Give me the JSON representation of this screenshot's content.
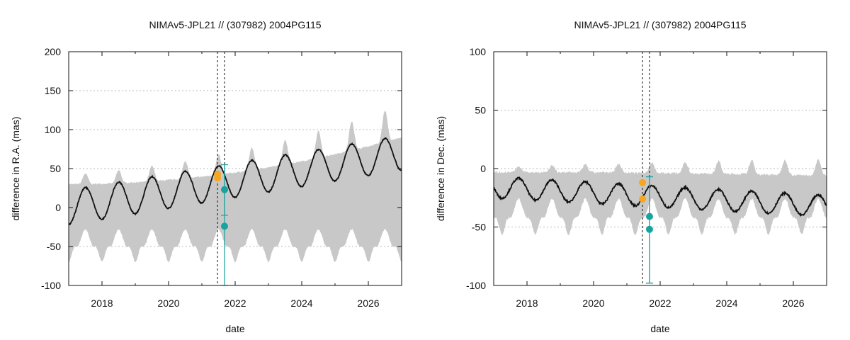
{
  "chart_data": [
    {
      "type": "line",
      "title": "NIMAv5-JPL21 // (307982) 2004PG115",
      "xlabel": "date",
      "ylabel": "difference in R.A. (mas)",
      "xlim": [
        2017.0,
        2027.0
      ],
      "ylim": [
        -100,
        200
      ],
      "xticks": [
        2018,
        2020,
        2022,
        2024,
        2026
      ],
      "yticks": [
        -100,
        -50,
        0,
        50,
        100,
        150,
        200
      ],
      "grid": "horizontal dotted",
      "mean_curve": {
        "offset_start": 0.0,
        "offset_end": 70.0,
        "amplitude": 22,
        "period_years": 1.0,
        "phase": 2018.25
      },
      "uncertainty_band": {
        "upper_base": 30,
        "upper_growth": 60,
        "upper_amplitude": 12,
        "lower_base": -50,
        "lower_amplitude": 22
      },
      "reference_lines_x": [
        2021.47,
        2021.68
      ],
      "observations": [
        {
          "x": 2021.47,
          "y": 43,
          "color": "#f5a623"
        },
        {
          "x": 2021.47,
          "y": 38,
          "color": "#f5a623"
        },
        {
          "x": 2021.68,
          "y": 23,
          "color": "#19a3a0",
          "error_low": -10,
          "error_high": 55
        },
        {
          "x": 2021.68,
          "y": -24,
          "color": "#19a3a0",
          "error_low": -100,
          "error_high": 55
        }
      ]
    },
    {
      "type": "line",
      "title": "NIMAv5-JPL21 // (307982) 2004PG115",
      "xlabel": "date",
      "ylabel": "difference in Dec. (mas)",
      "xlim": [
        2017.0,
        2027.0
      ],
      "ylim": [
        -100,
        100
      ],
      "xticks": [
        2018,
        2020,
        2022,
        2024,
        2026
      ],
      "yticks": [
        -100,
        -50,
        0,
        50,
        100
      ],
      "grid": "horizontal dotted",
      "mean_curve": {
        "offset_start": -16.0,
        "offset_end": -32.0,
        "amplitude": 9,
        "period_years": 1.0,
        "phase": 2017.5
      },
      "uncertainty_band": {
        "upper_base": -3,
        "upper_growth": -3,
        "upper_amplitude": 4,
        "lower_base": -42,
        "lower_amplitude": 16
      },
      "reference_lines_x": [
        2021.47,
        2021.68
      ],
      "observations": [
        {
          "x": 2021.47,
          "y": -12,
          "color": "#f5a623"
        },
        {
          "x": 2021.47,
          "y": -26,
          "color": "#f5a623"
        },
        {
          "x": 2021.68,
          "y": -41,
          "color": "#19a3a0",
          "error_low": -98,
          "error_high": -7
        },
        {
          "x": 2021.68,
          "y": -52,
          "color": "#19a3a0",
          "error_low": -98,
          "error_high": -7
        }
      ]
    }
  ]
}
